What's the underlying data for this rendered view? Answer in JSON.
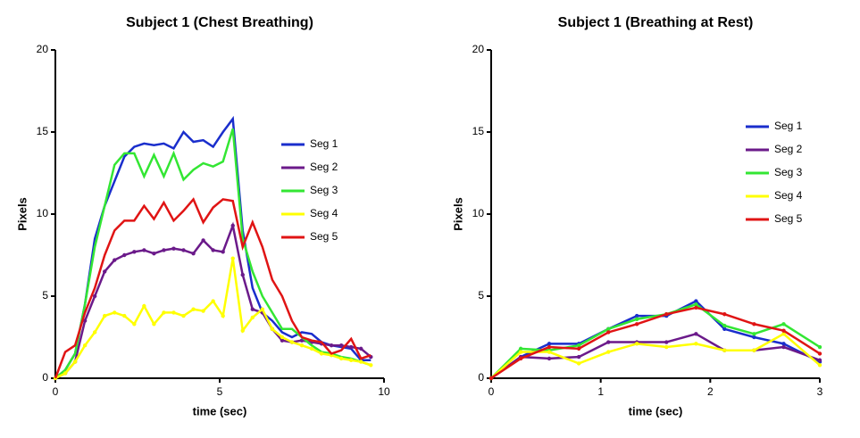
{
  "chart_data": [
    {
      "type": "line",
      "title": "Subject 1 (Chest Breathing)",
      "xlabel": "time (sec)",
      "ylabel": "Pixels",
      "x": [
        0,
        0.3,
        0.6,
        0.9,
        1.2,
        1.5,
        1.8,
        2.1,
        2.4,
        2.7,
        3.0,
        3.3,
        3.6,
        3.9,
        4.2,
        4.5,
        4.8,
        5.1,
        5.4,
        5.7,
        6.0,
        6.3,
        6.6,
        6.9,
        7.2,
        7.5,
        7.8,
        8.1,
        8.4,
        8.7,
        9.0,
        9.3,
        9.6
      ],
      "xlim": [
        0,
        10
      ],
      "xticks": [
        0,
        5,
        10
      ],
      "ylim": [
        0,
        20
      ],
      "yticks": [
        0,
        5,
        10,
        15,
        20
      ],
      "legend": "right",
      "series": [
        {
          "name": "Seg 1",
          "color": "#1a2ecc",
          "values": [
            0,
            0.5,
            1.5,
            4.5,
            8.5,
            10.5,
            12,
            13.5,
            14.1,
            14.3,
            14.2,
            14.3,
            14,
            15,
            14.4,
            14.5,
            14.1,
            15,
            15.8,
            9,
            5.5,
            4,
            3.5,
            2.8,
            2.5,
            2.8,
            2.7,
            2.2,
            2,
            1.9,
            1.8,
            1.1,
            1.1
          ]
        },
        {
          "name": "Seg 2",
          "color": "#6b1a8a",
          "values": [
            0,
            0.3,
            1,
            3.5,
            5,
            6.5,
            7.2,
            7.5,
            7.7,
            7.8,
            7.6,
            7.8,
            7.9,
            7.8,
            7.6,
            8.4,
            7.8,
            7.7,
            9.3,
            6.3,
            4.2,
            4,
            3,
            2.3,
            2.2,
            2.3,
            2.2,
            2.1,
            2,
            2,
            1.9,
            1.8,
            1.3
          ]
        },
        {
          "name": "Seg 3",
          "color": "#33e633",
          "values": [
            0,
            0.5,
            1.5,
            4.5,
            8,
            10.5,
            13,
            13.7,
            13.7,
            12.3,
            13.6,
            12.3,
            13.7,
            12.1,
            12.7,
            13.1,
            12.9,
            13.2,
            15.2,
            8.5,
            6.5,
            5,
            4,
            3,
            3,
            2.5,
            2,
            1.6,
            1.5,
            1.3,
            1.2,
            1,
            0.8
          ]
        },
        {
          "name": "Seg 4",
          "color": "#ffff00",
          "values": [
            0,
            0.3,
            1,
            2,
            2.8,
            3.8,
            4,
            3.8,
            3.3,
            4.4,
            3.3,
            4,
            4,
            3.8,
            4.2,
            4.1,
            4.7,
            3.8,
            7.3,
            2.9,
            3.7,
            4.2,
            3,
            2.5,
            2.2,
            2,
            1.8,
            1.5,
            1.4,
            1.2,
            1.1,
            1,
            0.8
          ]
        },
        {
          "name": "Seg 5",
          "color": "#e01414",
          "values": [
            0,
            1.6,
            2,
            4,
            5.5,
            7.5,
            9,
            9.6,
            9.6,
            10.5,
            9.7,
            10.7,
            9.6,
            10.2,
            10.9,
            9.5,
            10.4,
            10.9,
            10.8,
            8,
            9.5,
            8,
            6,
            5,
            3.5,
            2.5,
            2.3,
            2.2,
            1.5,
            1.7,
            2.4,
            1.2,
            1.4
          ]
        }
      ]
    },
    {
      "type": "line",
      "title": "Subject 1 (Breathing at Rest)",
      "xlabel": "time (sec)",
      "ylabel": "Pixels",
      "x": [
        0,
        0.27,
        0.53,
        0.8,
        1.07,
        1.33,
        1.6,
        1.87,
        2.13,
        2.4,
        2.67,
        3
      ],
      "xlim": [
        0,
        3
      ],
      "xticks": [
        0,
        1,
        2,
        3
      ],
      "ylim": [
        0,
        20
      ],
      "yticks": [
        0,
        5,
        10,
        15,
        20
      ],
      "legend": "upper right",
      "series": [
        {
          "name": "Seg 1",
          "color": "#1a2ecc",
          "values": [
            0,
            1.3,
            2.1,
            2.1,
            3,
            3.8,
            3.8,
            4.7,
            3,
            2.5,
            2.1,
            1
          ]
        },
        {
          "name": "Seg 2",
          "color": "#6b1a8a",
          "values": [
            0,
            1.3,
            1.2,
            1.3,
            2.2,
            2.2,
            2.2,
            2.7,
            1.7,
            1.7,
            1.9,
            1.1
          ]
        },
        {
          "name": "Seg 3",
          "color": "#33e633",
          "values": [
            0,
            1.8,
            1.7,
            2,
            3,
            3.6,
            3.9,
            4.5,
            3.2,
            2.7,
            3.3,
            1.9
          ]
        },
        {
          "name": "Seg 4",
          "color": "#ffff00",
          "values": [
            0,
            1.6,
            1.6,
            0.9,
            1.6,
            2.1,
            1.9,
            2.1,
            1.7,
            1.7,
            2.7,
            0.8
          ]
        },
        {
          "name": "Seg 5",
          "color": "#e01414",
          "values": [
            0,
            1.2,
            1.9,
            1.8,
            2.8,
            3.3,
            3.9,
            4.3,
            3.9,
            3.3,
            2.9,
            1.5
          ]
        }
      ]
    }
  ]
}
